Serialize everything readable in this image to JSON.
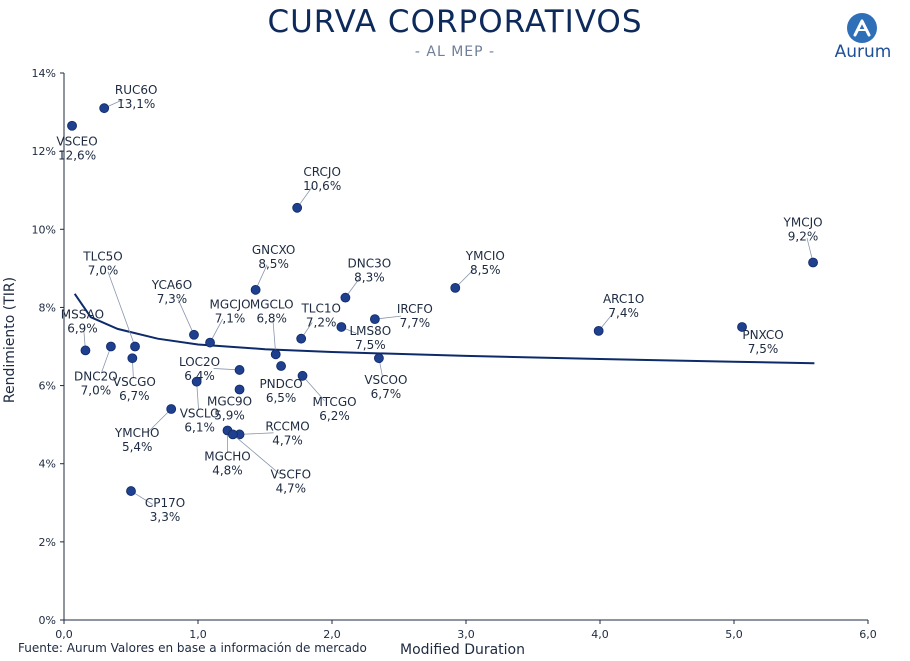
{
  "header": {
    "title": "CURVA CORPORATIVOS",
    "subtitle": "- AL MEP -"
  },
  "logo": {
    "text": "Aurum"
  },
  "footer": {
    "source": "Fuente: Aurum Valores en base a información de mercado"
  },
  "colors": {
    "title": "#0d2a5b",
    "points": "#1f3f8f",
    "curve": "#0d2a6b",
    "axis": "#1d2a40"
  },
  "chart_data": {
    "type": "scatter",
    "title": "CURVA CORPORATIVOS",
    "subtitle": "- AL MEP -",
    "xlabel": "Modified Duration",
    "ylabel": "Rendimiento (TIR)",
    "xlim": [
      0,
      6
    ],
    "ylim": [
      0,
      14
    ],
    "x_ticks": [
      "0,0",
      "1,0",
      "2,0",
      "3,0",
      "4,0",
      "5,0",
      "6,0"
    ],
    "y_ticks": [
      "0%",
      "2%",
      "4%",
      "6%",
      "8%",
      "10%",
      "12%",
      "14%"
    ],
    "grid": false,
    "points": [
      {
        "name": "RUC6O",
        "value_label": "13,1%",
        "x": 0.3,
        "y": 13.1
      },
      {
        "name": "VSCEO",
        "value_label": "12,6%",
        "x": 0.06,
        "y": 12.65
      },
      {
        "name": "CRCJO",
        "value_label": "10,6%",
        "x": 1.74,
        "y": 10.55
      },
      {
        "name": "YMCJO",
        "value_label": "9,2%",
        "x": 5.59,
        "y": 9.15
      },
      {
        "name": "TLC5O",
        "value_label": "7,0%",
        "x": 0.53,
        "y": 7.0
      },
      {
        "name": "YCA6O",
        "value_label": "7,3%",
        "x": 0.97,
        "y": 7.3
      },
      {
        "name": "GNCXO",
        "value_label": "8,5%",
        "x": 1.43,
        "y": 8.45
      },
      {
        "name": "DNC3O",
        "value_label": "8,3%",
        "x": 2.1,
        "y": 8.25
      },
      {
        "name": "YMCIO",
        "value_label": "8,5%",
        "x": 2.92,
        "y": 8.5
      },
      {
        "name": "ARC1O",
        "value_label": "7,4%",
        "x": 3.99,
        "y": 7.4
      },
      {
        "name": "MSSAO",
        "value_label": "6,9%",
        "x": 0.16,
        "y": 6.9
      },
      {
        "name": "MGCJO",
        "value_label": "7,1%",
        "x": 1.09,
        "y": 7.1
      },
      {
        "name": "MGCLO",
        "value_label": "6,8%",
        "x": 1.58,
        "y": 6.8
      },
      {
        "name": "TLC1O",
        "value_label": "7,2%",
        "x": 1.77,
        "y": 7.2
      },
      {
        "name": "IRCFO",
        "value_label": "7,7%",
        "x": 2.32,
        "y": 7.7
      },
      {
        "name": "LMS8O",
        "value_label": "7,5%",
        "x": 2.07,
        "y": 7.5
      },
      {
        "name": "PNXCO",
        "value_label": "7,5%",
        "x": 5.06,
        "y": 7.5
      },
      {
        "name": "DNC2O",
        "value_label": "7,0%",
        "x": 0.35,
        "y": 7.0
      },
      {
        "name": "VSCGO",
        "value_label": "6,7%",
        "x": 0.51,
        "y": 6.7
      },
      {
        "name": "LOC2O",
        "value_label": "6,4%",
        "x": 1.31,
        "y": 6.4
      },
      {
        "name": "PNDCO",
        "value_label": "6,5%",
        "x": 1.62,
        "y": 6.5
      },
      {
        "name": "VSCOO",
        "value_label": "6,7%",
        "x": 2.35,
        "y": 6.7
      },
      {
        "name": "MTCGO",
        "value_label": "6,2%",
        "x": 1.78,
        "y": 6.25
      },
      {
        "name": "VSCLO",
        "value_label": "6,1%",
        "x": 0.99,
        "y": 6.1
      },
      {
        "name": "MGC9O",
        "value_label": "5,9%",
        "x": 1.31,
        "y": 5.9
      },
      {
        "name": "YMCHO",
        "value_label": "5,4%",
        "x": 0.8,
        "y": 5.4
      },
      {
        "name": "RCCMO",
        "value_label": "4,7%",
        "x": 1.31,
        "y": 4.75
      },
      {
        "name": "MGCHO",
        "value_label": "4,8%",
        "x": 1.22,
        "y": 4.85
      },
      {
        "name": "VSCFO",
        "value_label": "4,7%",
        "x": 1.26,
        "y": 4.75
      },
      {
        "name": "CP17O",
        "value_label": "3,3%",
        "x": 0.5,
        "y": 3.3
      }
    ],
    "trend_curve": {
      "type": "line",
      "x": [
        0.08,
        0.2,
        0.4,
        0.7,
        1.0,
        1.5,
        2.0,
        3.0,
        4.0,
        5.0,
        5.6
      ],
      "y": [
        8.35,
        7.75,
        7.45,
        7.2,
        7.05,
        6.93,
        6.86,
        6.76,
        6.68,
        6.61,
        6.57
      ]
    }
  }
}
